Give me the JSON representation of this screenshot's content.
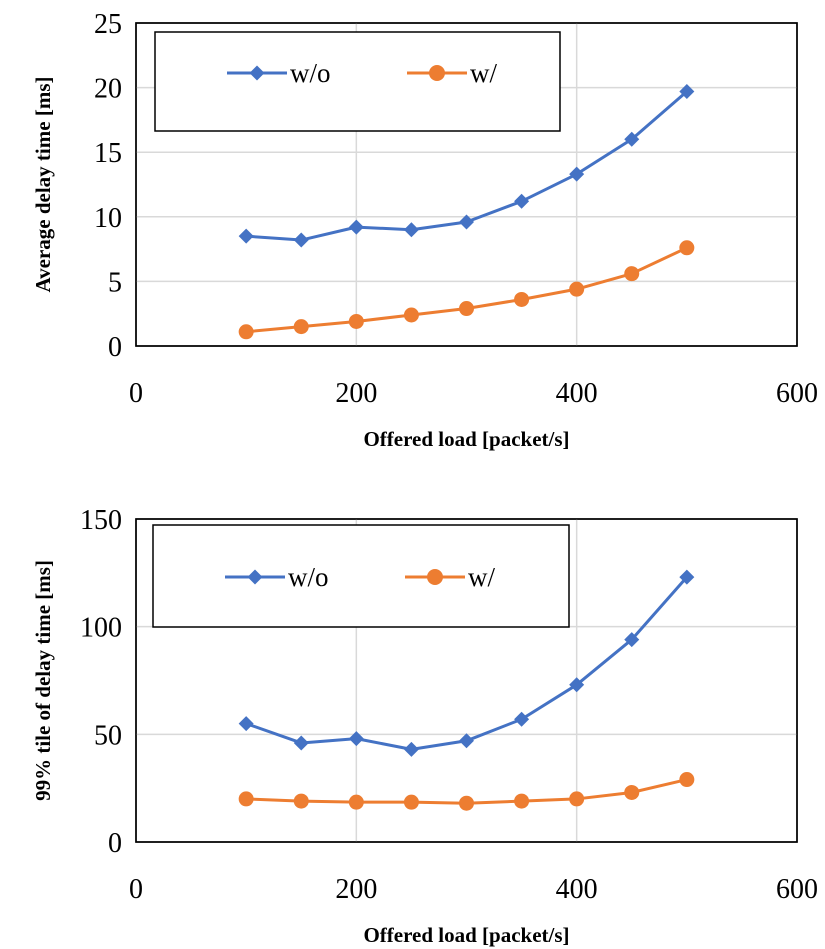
{
  "colors": {
    "wo": "#4472c4",
    "w": "#ed7d31"
  },
  "chart_data": [
    {
      "type": "line",
      "xlabel": "Offered load [packet/s]",
      "ylabel": "Average delay time [ms]",
      "xlim": [
        0,
        600
      ],
      "ylim": [
        0,
        25
      ],
      "xticks": [
        "0",
        "200",
        "400",
        "600"
      ],
      "yticks": [
        "0",
        "5",
        "10",
        "15",
        "20",
        "25"
      ],
      "grid": true,
      "legend_position": "top-left",
      "x": [
        100,
        150,
        200,
        250,
        300,
        350,
        400,
        450,
        500
      ],
      "series": [
        {
          "name": "w/o",
          "marker": "diamond-icon",
          "values": [
            8.5,
            8.2,
            9.2,
            9.0,
            9.6,
            11.2,
            13.3,
            16.0,
            19.7
          ]
        },
        {
          "name": "w/",
          "marker": "circle-icon",
          "values": [
            1.1,
            1.5,
            1.9,
            2.4,
            2.9,
            3.6,
            4.4,
            5.6,
            7.6
          ]
        }
      ]
    },
    {
      "type": "line",
      "xlabel": "Offered load [packet/s]",
      "ylabel": "99% tile of delay time [ms]",
      "xlim": [
        0,
        600
      ],
      "ylim": [
        0,
        150
      ],
      "xticks": [
        "0",
        "200",
        "400",
        "600"
      ],
      "yticks": [
        "0",
        "50",
        "100",
        "150"
      ],
      "grid": true,
      "legend_position": "top-left",
      "x": [
        100,
        150,
        200,
        250,
        300,
        350,
        400,
        450,
        500
      ],
      "series": [
        {
          "name": "w/o",
          "marker": "diamond-icon",
          "values": [
            55,
            46,
            48,
            43,
            47,
            57,
            73,
            94,
            123
          ]
        },
        {
          "name": "w/",
          "marker": "circle-icon",
          "values": [
            20,
            19,
            18.5,
            18.5,
            18,
            19,
            20,
            23,
            29
          ]
        }
      ]
    }
  ]
}
